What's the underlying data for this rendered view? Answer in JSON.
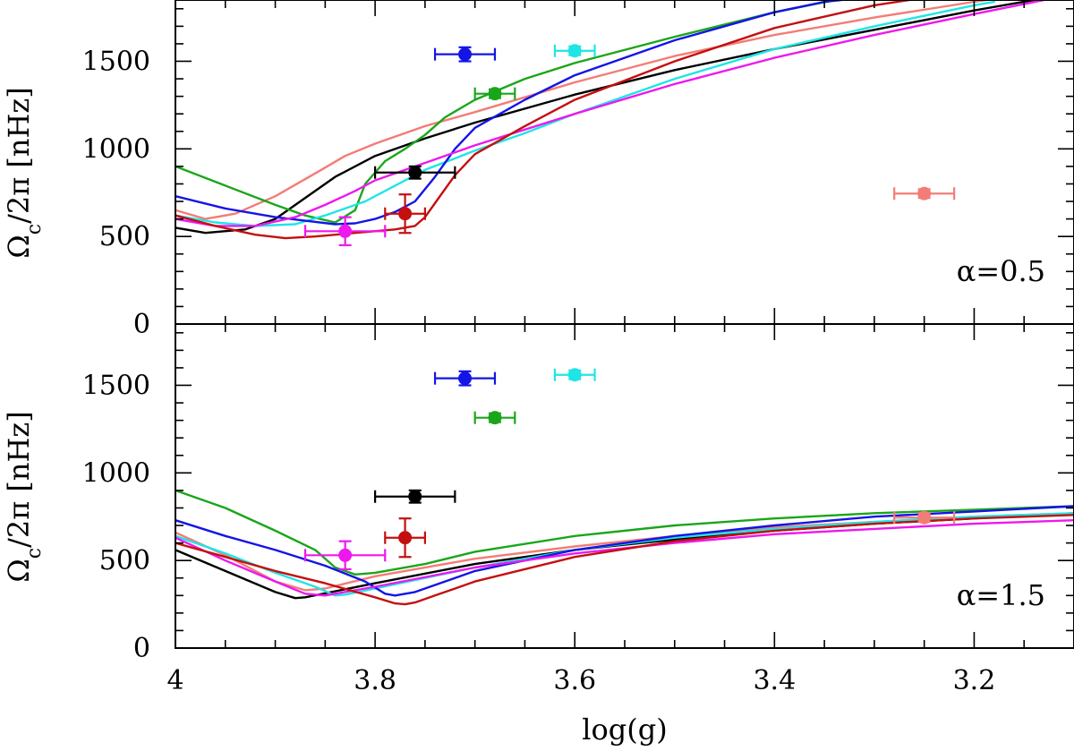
{
  "chart_data": {
    "type": "line",
    "xlabel": "log(g)",
    "xlim": [
      4.0,
      3.1
    ],
    "xticks": [
      4,
      3.8,
      3.6,
      3.4,
      3.2
    ],
    "xtick_labels": [
      "4",
      "3.8",
      "3.6",
      "3.4",
      "3.2"
    ],
    "series_colors": {
      "black": "#000000",
      "salmon": "#f47c76",
      "green": "#1aa61a",
      "cyan": "#1fe5e5",
      "blue": "#1414e6",
      "magenta": "#ee18ee",
      "darkred": "#c40f0f"
    },
    "panels": [
      {
        "id": "top",
        "ylabel": "Ω_c/2π [nHz]",
        "ylabel_main": "Ω",
        "ylabel_sub": "c",
        "ylabel_rest": "/2π [nHz]",
        "ylim": [
          0,
          1850
        ],
        "yticks": [
          0,
          500,
          1000,
          1500
        ],
        "ytick_labels": [
          "0",
          "500",
          "1000",
          "1500"
        ],
        "annotation": "α=0.5",
        "series": [
          {
            "name": "black",
            "x": [
              4.0,
              3.97,
              3.93,
              3.9,
              3.87,
              3.84,
              3.8,
              3.75,
              3.7,
              3.6,
              3.5,
              3.4,
              3.3,
              3.2,
              3.13
            ],
            "y": [
              550,
              520,
              540,
              600,
              720,
              840,
              960,
              1060,
              1150,
              1310,
              1450,
              1570,
              1680,
              1790,
              1860
            ]
          },
          {
            "name": "salmon",
            "x": [
              4.0,
              3.97,
              3.94,
              3.9,
              3.86,
              3.83,
              3.8,
              3.75,
              3.7,
              3.6,
              3.5,
              3.4,
              3.3,
              3.2,
              3.15
            ],
            "y": [
              650,
              600,
              630,
              730,
              860,
              960,
              1030,
              1130,
              1210,
              1380,
              1530,
              1650,
              1750,
              1840,
              1880
            ]
          },
          {
            "name": "green",
            "x": [
              4.0,
              3.95,
              3.9,
              3.87,
              3.84,
              3.82,
              3.81,
              3.79,
              3.77,
              3.75,
              3.73,
              3.7,
              3.65,
              3.6,
              3.5,
              3.45,
              3.4,
              3.33
            ],
            "y": [
              900,
              790,
              680,
              620,
              580,
              650,
              800,
              930,
              1000,
              1080,
              1180,
              1280,
              1400,
              1490,
              1640,
              1710,
              1780,
              1860
            ]
          },
          {
            "name": "cyan",
            "x": [
              4.0,
              3.96,
              3.92,
              3.88,
              3.85,
              3.81,
              3.78,
              3.75,
              3.7,
              3.65,
              3.6,
              3.5,
              3.4,
              3.3,
              3.2,
              3.18
            ],
            "y": [
              620,
              580,
              560,
              570,
              620,
              700,
              790,
              880,
              990,
              1090,
              1200,
              1400,
              1570,
              1700,
              1820,
              1840
            ]
          },
          {
            "name": "blue",
            "x": [
              4.0,
              3.95,
              3.9,
              3.87,
              3.84,
              3.82,
              3.8,
              3.78,
              3.76,
              3.74,
              3.72,
              3.7,
              3.65,
              3.6,
              3.5,
              3.4,
              3.35,
              3.3
            ],
            "y": [
              730,
              660,
              610,
              590,
              570,
              575,
              600,
              640,
              700,
              840,
              1000,
              1120,
              1280,
              1420,
              1620,
              1780,
              1840,
              1870
            ]
          },
          {
            "name": "magenta",
            "x": [
              4.0,
              3.96,
              3.92,
              3.88,
              3.85,
              3.82,
              3.8,
              3.75,
              3.7,
              3.6,
              3.5,
              3.4,
              3.3,
              3.2,
              3.13
            ],
            "y": [
              600,
              560,
              560,
              610,
              680,
              760,
              820,
              920,
              1020,
              1200,
              1370,
              1520,
              1650,
              1770,
              1850
            ]
          },
          {
            "name": "darkred",
            "x": [
              4.0,
              3.96,
              3.92,
              3.89,
              3.86,
              3.82,
              3.78,
              3.76,
              3.75,
              3.74,
              3.72,
              3.7,
              3.65,
              3.6,
              3.5,
              3.4,
              3.3,
              3.23
            ],
            "y": [
              620,
              560,
              510,
              490,
              500,
              520,
              540,
              560,
              610,
              690,
              850,
              970,
              1130,
              1280,
              1500,
              1690,
              1820,
              1880
            ]
          }
        ],
        "points": [
          {
            "color": "blue",
            "x": 3.71,
            "y": 1540,
            "xerr": 0.03,
            "yerr": 40
          },
          {
            "color": "cyan",
            "x": 3.6,
            "y": 1560,
            "xerr": 0.02,
            "yerr": 25
          },
          {
            "color": "green",
            "x": 3.68,
            "y": 1315,
            "xerr": 0.02,
            "yerr": 25
          },
          {
            "color": "black",
            "x": 3.76,
            "y": 865,
            "xerr": 0.04,
            "yerr": 35
          },
          {
            "color": "darkred",
            "x": 3.77,
            "y": 630,
            "xerr": 0.02,
            "yerr": 110
          },
          {
            "color": "magenta",
            "x": 3.83,
            "y": 530,
            "xerr": 0.04,
            "yerr": 80
          },
          {
            "color": "salmon",
            "x": 3.25,
            "y": 745,
            "xerr": 0.03,
            "yerr": 25
          }
        ]
      },
      {
        "id": "bottom",
        "ylabel": "Ω_c/2π [nHz]",
        "ylabel_main": "Ω",
        "ylabel_sub": "c",
        "ylabel_rest": "/2π [nHz]",
        "ylim": [
          0,
          1850
        ],
        "yticks": [
          0,
          500,
          1000,
          1500
        ],
        "ytick_labels": [
          "0",
          "500",
          "1000",
          "1500"
        ],
        "annotation": "α=1.5",
        "series": [
          {
            "name": "black",
            "x": [
              4.0,
              3.95,
              3.9,
              3.88,
              3.87,
              3.8,
              3.7,
              3.6,
              3.5,
              3.4,
              3.3,
              3.2,
              3.1
            ],
            "y": [
              560,
              440,
              320,
              285,
              290,
              370,
              480,
              560,
              620,
              670,
              710,
              740,
              770
            ]
          },
          {
            "name": "salmon",
            "x": [
              4.0,
              3.95,
              3.9,
              3.87,
              3.85,
              3.8,
              3.7,
              3.6,
              3.5,
              3.4,
              3.3,
              3.2,
              3.1
            ],
            "y": [
              660,
              530,
              380,
              330,
              340,
              410,
              510,
              580,
              640,
              690,
              720,
              750,
              770
            ]
          },
          {
            "name": "green",
            "x": [
              4.0,
              3.95,
              3.9,
              3.86,
              3.84,
              3.82,
              3.8,
              3.75,
              3.7,
              3.6,
              3.5,
              3.4,
              3.3,
              3.2,
              3.1
            ],
            "y": [
              900,
              800,
              670,
              560,
              460,
              420,
              430,
              480,
              550,
              640,
              700,
              740,
              770,
              790,
              810
            ]
          },
          {
            "name": "cyan",
            "x": [
              4.0,
              3.95,
              3.9,
              3.86,
              3.84,
              3.83,
              3.8,
              3.75,
              3.7,
              3.6,
              3.5,
              3.4,
              3.3,
              3.2,
              3.1
            ],
            "y": [
              640,
              540,
              430,
              350,
              300,
              305,
              340,
              400,
              460,
              560,
              630,
              680,
              720,
              750,
              770
            ]
          },
          {
            "name": "blue",
            "x": [
              4.0,
              3.95,
              3.9,
              3.85,
              3.81,
              3.79,
              3.78,
              3.76,
              3.72,
              3.7,
              3.6,
              3.5,
              3.4,
              3.3,
              3.2,
              3.1
            ],
            "y": [
              730,
              640,
              560,
              470,
              380,
              310,
              300,
              320,
              400,
              440,
              560,
              640,
              700,
              750,
              780,
              810
            ]
          },
          {
            "name": "magenta",
            "x": [
              4.0,
              3.95,
              3.9,
              3.87,
              3.85,
              3.8,
              3.7,
              3.6,
              3.5,
              3.4,
              3.3,
              3.2,
              3.1
            ],
            "y": [
              630,
              500,
              380,
              310,
              300,
              350,
              460,
              540,
              600,
              650,
              680,
              710,
              730
            ]
          },
          {
            "name": "darkred",
            "x": [
              4.0,
              3.95,
              3.9,
              3.85,
              3.8,
              3.78,
              3.77,
              3.76,
              3.74,
              3.72,
              3.7,
              3.6,
              3.5,
              3.4,
              3.3,
              3.2,
              3.1
            ],
            "y": [
              600,
              520,
              440,
              370,
              290,
              255,
              250,
              260,
              300,
              340,
              380,
              520,
              610,
              670,
              710,
              740,
              760
            ]
          }
        ],
        "points": [
          {
            "color": "blue",
            "x": 3.71,
            "y": 1540,
            "xerr": 0.03,
            "yerr": 40
          },
          {
            "color": "cyan",
            "x": 3.6,
            "y": 1560,
            "xerr": 0.02,
            "yerr": 25
          },
          {
            "color": "green",
            "x": 3.68,
            "y": 1315,
            "xerr": 0.02,
            "yerr": 25
          },
          {
            "color": "black",
            "x": 3.76,
            "y": 865,
            "xerr": 0.04,
            "yerr": 35
          },
          {
            "color": "darkred",
            "x": 3.77,
            "y": 630,
            "xerr": 0.02,
            "yerr": 110
          },
          {
            "color": "magenta",
            "x": 3.83,
            "y": 530,
            "xerr": 0.04,
            "yerr": 80
          },
          {
            "color": "salmon",
            "x": 3.25,
            "y": 745,
            "xerr": 0.03,
            "yerr": 25
          }
        ]
      }
    ]
  }
}
